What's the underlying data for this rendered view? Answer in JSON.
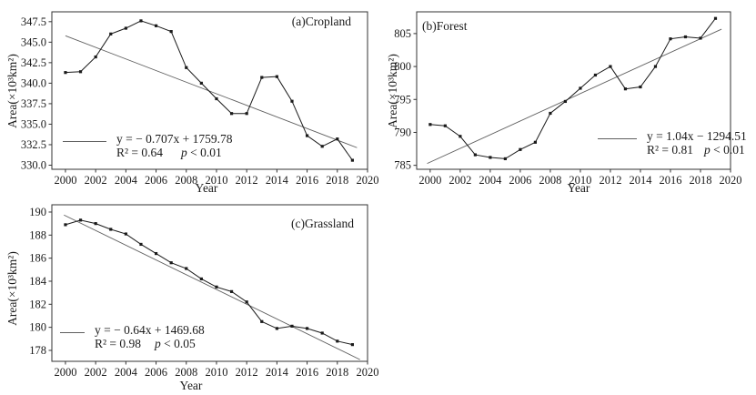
{
  "figure": {
    "background": "#ffffff",
    "frame_color": "#333333",
    "data_line_color": "#1a1a1a",
    "trend_line_color": "#5f5f5f",
    "marker": "square"
  },
  "chart_data": [
    {
      "type": "line",
      "title": "(a)Cropland",
      "xlabel": "Year",
      "ylabel": "Area(×10³km²)",
      "x": [
        2000,
        2001,
        2002,
        2003,
        2004,
        2005,
        2006,
        2007,
        2008,
        2009,
        2010,
        2011,
        2012,
        2013,
        2014,
        2015,
        2016,
        2017,
        2018,
        2019
      ],
      "values": [
        341.3,
        341.4,
        343.2,
        346.0,
        346.7,
        347.6,
        347.0,
        346.3,
        341.9,
        340.0,
        338.1,
        336.3,
        336.3,
        340.7,
        340.8,
        337.8,
        333.6,
        332.3,
        333.2,
        330.6
      ],
      "xlim": [
        1999.1,
        2020.0
      ],
      "ylim": [
        329.5,
        348.7
      ],
      "xticks": [
        2000,
        2002,
        2004,
        2006,
        2008,
        2010,
        2012,
        2014,
        2016,
        2018,
        2020
      ],
      "xtick_labels": [
        "2000",
        "2002",
        "2004",
        "2006",
        "2008",
        "2010",
        "2012",
        "2014",
        "2016",
        "2018",
        "2020"
      ],
      "yticks": [
        330.0,
        332.5,
        335.0,
        337.5,
        340.0,
        342.5,
        345.0,
        347.5
      ],
      "ytick_labels": [
        "330.0",
        "332.5",
        "335.0",
        "337.5",
        "340.0",
        "342.5",
        "345.0",
        "347.5"
      ],
      "trend": {
        "slope": -0.707,
        "intercept": 1759.78,
        "x_start": 2000.0,
        "x_end": 2019.3
      },
      "equation": "y = − 0.707x + 1759.78",
      "r2": "R² = 0.64",
      "p_var": "p",
      "p_rest": " < 0.01",
      "legend_position": "bottom-left",
      "title_position": "top-right",
      "grid": false
    },
    {
      "type": "line",
      "title": "(b)Forest",
      "xlabel": "Year",
      "ylabel": "Area(×10³km²)",
      "x": [
        2000,
        2001,
        2002,
        2003,
        2004,
        2005,
        2006,
        2007,
        2008,
        2009,
        2010,
        2011,
        2012,
        2013,
        2014,
        2015,
        2016,
        2017,
        2018,
        2019
      ],
      "values": [
        791.2,
        791.0,
        789.4,
        786.6,
        786.2,
        786.0,
        787.4,
        788.5,
        792.9,
        794.7,
        796.7,
        798.7,
        800.0,
        796.6,
        796.9,
        800.0,
        804.2,
        804.5,
        804.3,
        807.3
      ],
      "xlim": [
        1999.1,
        2020.0
      ],
      "ylim": [
        784.4,
        808.3
      ],
      "xticks": [
        2000,
        2002,
        2004,
        2006,
        2008,
        2010,
        2012,
        2014,
        2016,
        2018,
        2020
      ],
      "xtick_labels": [
        "2000",
        "2002",
        "2004",
        "2006",
        "2008",
        "2010",
        "2012",
        "2014",
        "2016",
        "2018",
        "2020"
      ],
      "yticks": [
        785,
        790,
        795,
        800,
        805
      ],
      "ytick_labels": [
        "785",
        "790",
        "795",
        "800",
        "805"
      ],
      "trend": {
        "slope": 1.04,
        "intercept": -1294.51,
        "x_start": 1999.8,
        "x_end": 2019.4
      },
      "equation": "y = 1.04x − 1294.51",
      "r2": "R² = 0.81",
      "p_var": "p",
      "p_rest": " < 0.01",
      "legend_position": "bottom-right",
      "title_position": "top-left",
      "grid": false
    },
    {
      "type": "line",
      "title": "(c)Grassland",
      "xlabel": "Year",
      "ylabel": "Area(×10³km²)",
      "x": [
        2000,
        2001,
        2002,
        2003,
        2004,
        2005,
        2006,
        2007,
        2008,
        2009,
        2010,
        2011,
        2012,
        2013,
        2014,
        2015,
        2016,
        2017,
        2018,
        2019
      ],
      "values": [
        188.9,
        189.3,
        189.0,
        188.5,
        188.1,
        187.2,
        186.4,
        185.6,
        185.1,
        184.2,
        183.5,
        183.1,
        182.2,
        180.5,
        179.9,
        180.1,
        179.9,
        179.5,
        178.8,
        178.5
      ],
      "xlim": [
        1999.1,
        2020.0
      ],
      "ylim": [
        177.05,
        190.63
      ],
      "xticks": [
        2000,
        2002,
        2004,
        2006,
        2008,
        2010,
        2012,
        2014,
        2016,
        2018,
        2020
      ],
      "xtick_labels": [
        "2000",
        "2002",
        "2004",
        "2006",
        "2008",
        "2010",
        "2012",
        "2014",
        "2016",
        "2018",
        "2020"
      ],
      "yticks": [
        178,
        180,
        182,
        184,
        186,
        188,
        190
      ],
      "ytick_labels": [
        "178",
        "180",
        "182",
        "184",
        "186",
        "188",
        "190"
      ],
      "trend": {
        "slope": -0.64,
        "intercept": 1469.68,
        "x_start": 1999.9,
        "x_end": 2019.5
      },
      "equation": "y = − 0.64x + 1469.68",
      "r2": "R² = 0.98",
      "p_var": "p",
      "p_rest": " < 0.05",
      "legend_position": "bottom-left",
      "title_position": "top-right",
      "grid": false
    }
  ]
}
